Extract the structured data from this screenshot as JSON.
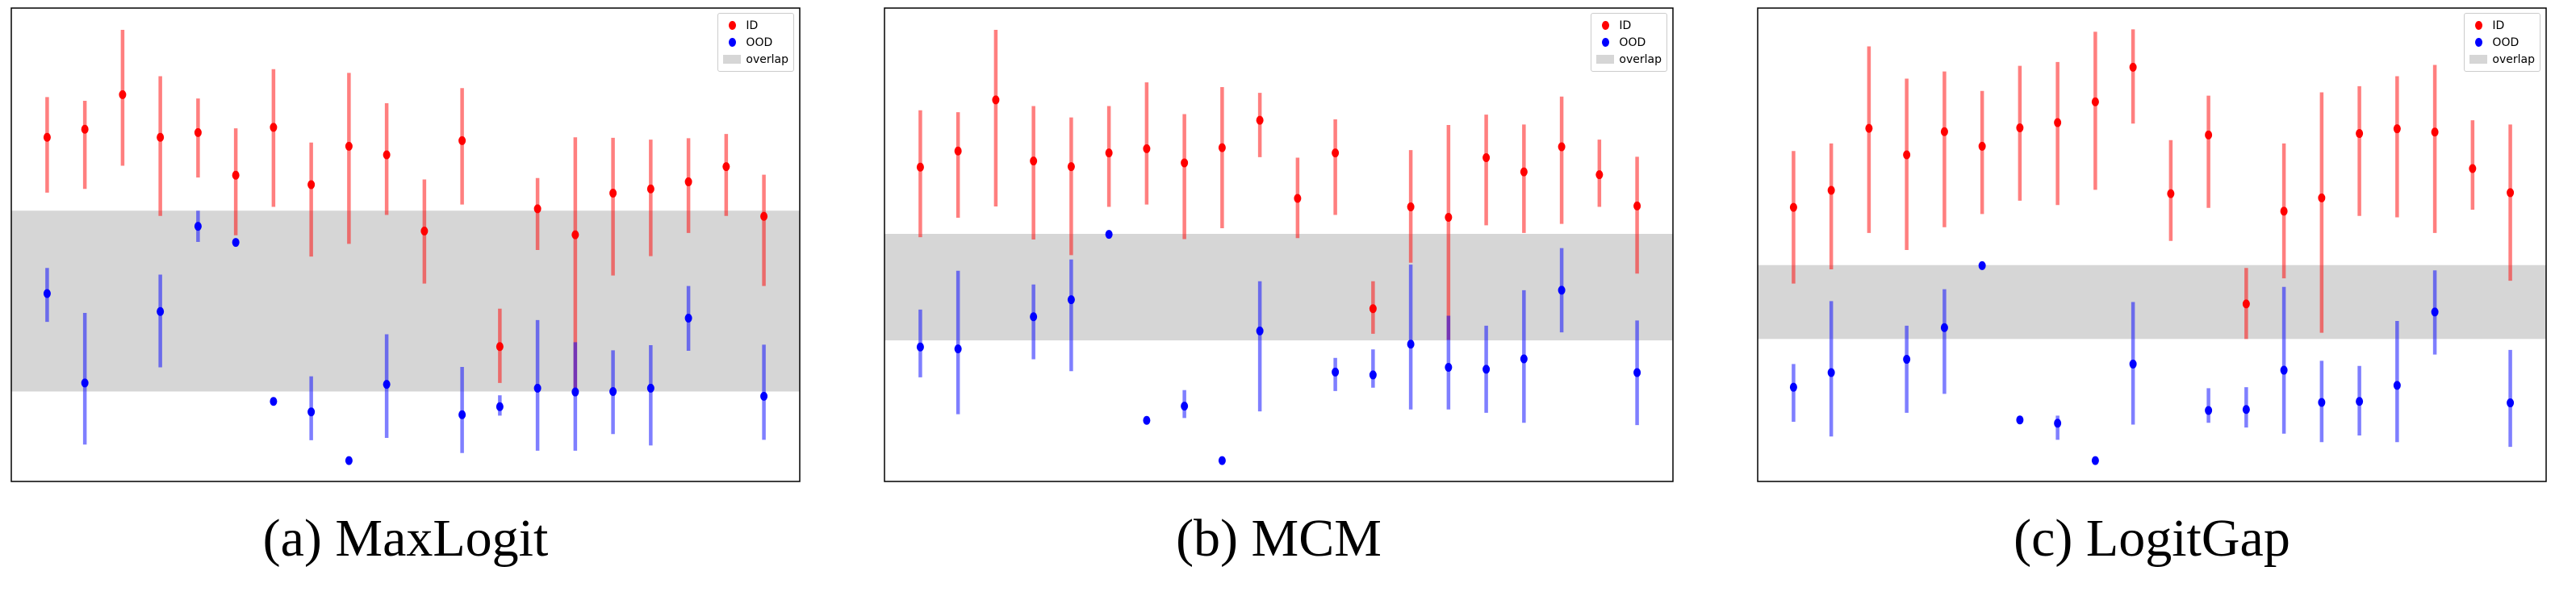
{
  "chart_data": [
    {
      "type": "errorbar",
      "caption": "(a) MaxLogit",
      "title": "",
      "xlabel": "",
      "ylabel": "",
      "xlim": [
        -0.95,
        19.95
      ],
      "ylim": [
        0,
        100
      ],
      "grid": false,
      "ticks": false,
      "legend": {
        "placement": "top-right",
        "entries": [
          "ID",
          "OOD",
          "overlap"
        ]
      },
      "overlap": [
        19.0,
        57.2
      ],
      "series": [
        {
          "name": "ID",
          "color": "#ff0000",
          "points": [
            [
              72.7,
              61.0,
              81.2
            ],
            [
              74.4,
              61.8,
              80.4
            ],
            [
              81.7,
              66.7,
              95.4
            ],
            [
              72.7,
              56.1,
              85.6
            ],
            [
              73.7,
              64.2,
              80.9
            ],
            [
              64.7,
              52.0,
              74.6
            ],
            [
              74.8,
              58.0,
              87.1
            ],
            [
              62.7,
              47.5,
              71.6
            ],
            [
              70.8,
              50.2,
              86.3
            ],
            [
              69.0,
              56.3,
              79.9
            ],
            [
              52.9,
              41.8,
              63.8
            ],
            [
              72.0,
              58.5,
              83.1
            ],
            [
              28.5,
              20.8,
              36.5
            ],
            [
              57.6,
              48.9,
              64.1
            ],
            [
              52.1,
              19.0,
              72.7
            ],
            [
              60.9,
              43.5,
              72.6
            ],
            [
              61.8,
              47.6,
              72.2
            ],
            [
              63.3,
              52.5,
              72.5
            ],
            [
              66.5,
              56.1,
              73.4
            ],
            [
              56.0,
              41.3,
              64.8
            ]
          ]
        },
        {
          "name": "OOD",
          "color": "#0000ff",
          "points": [
            [
              39.7,
              33.7,
              45.1
            ],
            [
              20.8,
              7.8,
              35.6
            ],
            null,
            [
              35.9,
              24.1,
              43.7
            ],
            [
              53.9,
              50.6,
              57.2
            ],
            [
              50.5,
              50.5,
              50.5
            ],
            [
              16.9,
              16.9,
              16.9
            ],
            [
              14.7,
              8.7,
              22.2
            ],
            [
              4.4,
              4.4,
              4.4
            ],
            [
              20.5,
              9.2,
              31.1
            ],
            null,
            [
              14.1,
              6.0,
              24.2
            ],
            [
              15.8,
              13.9,
              18.2
            ],
            [
              19.7,
              6.5,
              34.1
            ],
            [
              18.9,
              6.5,
              29.4
            ],
            [
              19.0,
              10.0,
              27.7
            ],
            [
              19.7,
              7.6,
              28.8
            ],
            [
              34.5,
              27.6,
              41.3
            ],
            null,
            [
              18.0,
              8.8,
              28.9
            ]
          ]
        }
      ]
    },
    {
      "type": "errorbar",
      "caption": "(b) MCM",
      "title": "",
      "xlabel": "",
      "ylabel": "",
      "xlim": [
        -0.95,
        19.95
      ],
      "ylim": [
        0,
        100
      ],
      "grid": false,
      "ticks": false,
      "legend": {
        "placement": "top-right",
        "entries": [
          "ID",
          "OOD",
          "overlap"
        ]
      },
      "overlap": [
        29.8,
        52.3
      ],
      "series": [
        {
          "name": "ID",
          "color": "#ff0000",
          "points": [
            [
              66.4,
              51.6,
              78.4
            ],
            [
              69.8,
              55.7,
              78.0
            ],
            [
              80.6,
              58.1,
              95.4
            ],
            [
              67.7,
              51.1,
              79.3
            ],
            [
              66.5,
              47.8,
              76.9
            ],
            [
              69.4,
              58.0,
              79.3
            ],
            [
              70.3,
              58.5,
              84.3
            ],
            [
              67.3,
              51.2,
              77.6
            ],
            [
              70.5,
              53.5,
              83.3
            ],
            [
              76.3,
              68.5,
              82.1
            ],
            [
              59.8,
              51.4,
              68.4
            ],
            [
              69.4,
              56.3,
              76.5
            ],
            [
              36.5,
              31.2,
              42.3
            ],
            [
              58.0,
              46.2,
              70.0
            ],
            [
              55.8,
              29.9,
              75.3
            ],
            [
              68.4,
              54.1,
              77.5
            ],
            [
              65.4,
              52.5,
              75.4
            ],
            [
              70.7,
              54.4,
              81.3
            ],
            [
              64.8,
              58.0,
              72.2
            ],
            [
              58.2,
              43.9,
              68.6
            ]
          ]
        },
        {
          "name": "OOD",
          "color": "#0000ff",
          "points": [
            [
              28.4,
              22.0,
              36.3
            ],
            [
              28.0,
              14.2,
              44.5
            ],
            null,
            [
              34.8,
              25.8,
              41.6
            ],
            [
              38.4,
              23.3,
              46.9
            ],
            [
              52.2,
              52.2,
              52.2
            ],
            [
              12.9,
              12.9,
              12.9
            ],
            [
              15.9,
              13.4,
              19.3
            ],
            [
              4.4,
              4.4,
              4.4
            ],
            [
              31.8,
              14.8,
              42.3
            ],
            null,
            [
              23.1,
              19.1,
              26.1
            ],
            [
              22.5,
              19.8,
              27.9
            ],
            [
              29.0,
              15.2,
              45.8
            ],
            [
              24.1,
              15.2,
              35.0
            ],
            [
              23.7,
              14.5,
              32.9
            ],
            [
              25.9,
              12.4,
              40.4
            ],
            [
              40.4,
              31.5,
              49.3
            ],
            null,
            [
              23.0,
              11.9,
              34.0
            ]
          ]
        }
      ]
    },
    {
      "type": "errorbar",
      "caption": "(c) LogitGap",
      "title": "",
      "xlabel": "",
      "ylabel": "",
      "xlim": [
        -0.95,
        19.95
      ],
      "ylim": [
        0,
        100
      ],
      "grid": false,
      "ticks": false,
      "legend": {
        "placement": "top-right",
        "entries": [
          "ID",
          "OOD",
          "overlap"
        ]
      },
      "overlap": [
        30.1,
        45.7
      ],
      "series": [
        {
          "name": "ID",
          "color": "#ff0000",
          "points": [
            [
              57.9,
              41.8,
              69.8
            ],
            [
              61.5,
              44.8,
              71.4
            ],
            [
              74.6,
              52.5,
              91.9
            ],
            [
              69.0,
              48.9,
              85.1
            ],
            [
              73.9,
              53.7,
              86.6
            ],
            [
              70.8,
              56.5,
              82.5
            ],
            [
              74.7,
              59.3,
              87.8
            ],
            [
              75.8,
              58.4,
              88.6
            ],
            [
              80.2,
              61.6,
              95.0
            ],
            [
              87.5,
              75.6,
              95.5
            ],
            [
              60.8,
              50.8,
              72.1
            ],
            [
              73.2,
              57.8,
              81.5
            ],
            [
              37.5,
              30.1,
              45.1
            ],
            [
              57.1,
              42.9,
              71.4
            ],
            [
              59.9,
              31.4,
              82.2
            ],
            [
              73.5,
              56.1,
              83.5
            ],
            [
              74.5,
              55.8,
              85.6
            ],
            [
              73.8,
              52.5,
              88.0
            ],
            [
              66.1,
              57.4,
              76.3
            ],
            [
              61.0,
              42.4,
              75.4
            ]
          ]
        },
        {
          "name": "OOD",
          "color": "#0000ff",
          "points": [
            [
              19.9,
              12.6,
              24.8
            ],
            [
              23.0,
              9.5,
              38.1
            ],
            null,
            [
              25.8,
              14.5,
              32.9
            ],
            [
              32.5,
              18.5,
              40.6
            ],
            [
              45.6,
              45.6,
              45.6
            ],
            [
              13.0,
              13.0,
              13.0
            ],
            [
              12.3,
              8.8,
              13.9
            ],
            [
              4.4,
              4.4,
              4.4
            ],
            [
              24.8,
              12.0,
              37.9
            ],
            null,
            [
              15.0,
              12.4,
              19.7
            ],
            [
              15.2,
              11.4,
              19.9
            ],
            [
              23.5,
              10.1,
              41.1
            ],
            [
              16.7,
              8.3,
              25.5
            ],
            [
              16.9,
              9.7,
              24.4
            ],
            [
              20.3,
              8.3,
              33.9
            ],
            [
              35.8,
              26.8,
              44.6
            ],
            null,
            [
              16.6,
              7.3,
              27.8
            ]
          ]
        }
      ]
    }
  ],
  "colors": {
    "id": "#ff0000",
    "ood": "#0000ff",
    "overlap": "#d6d6d6"
  }
}
